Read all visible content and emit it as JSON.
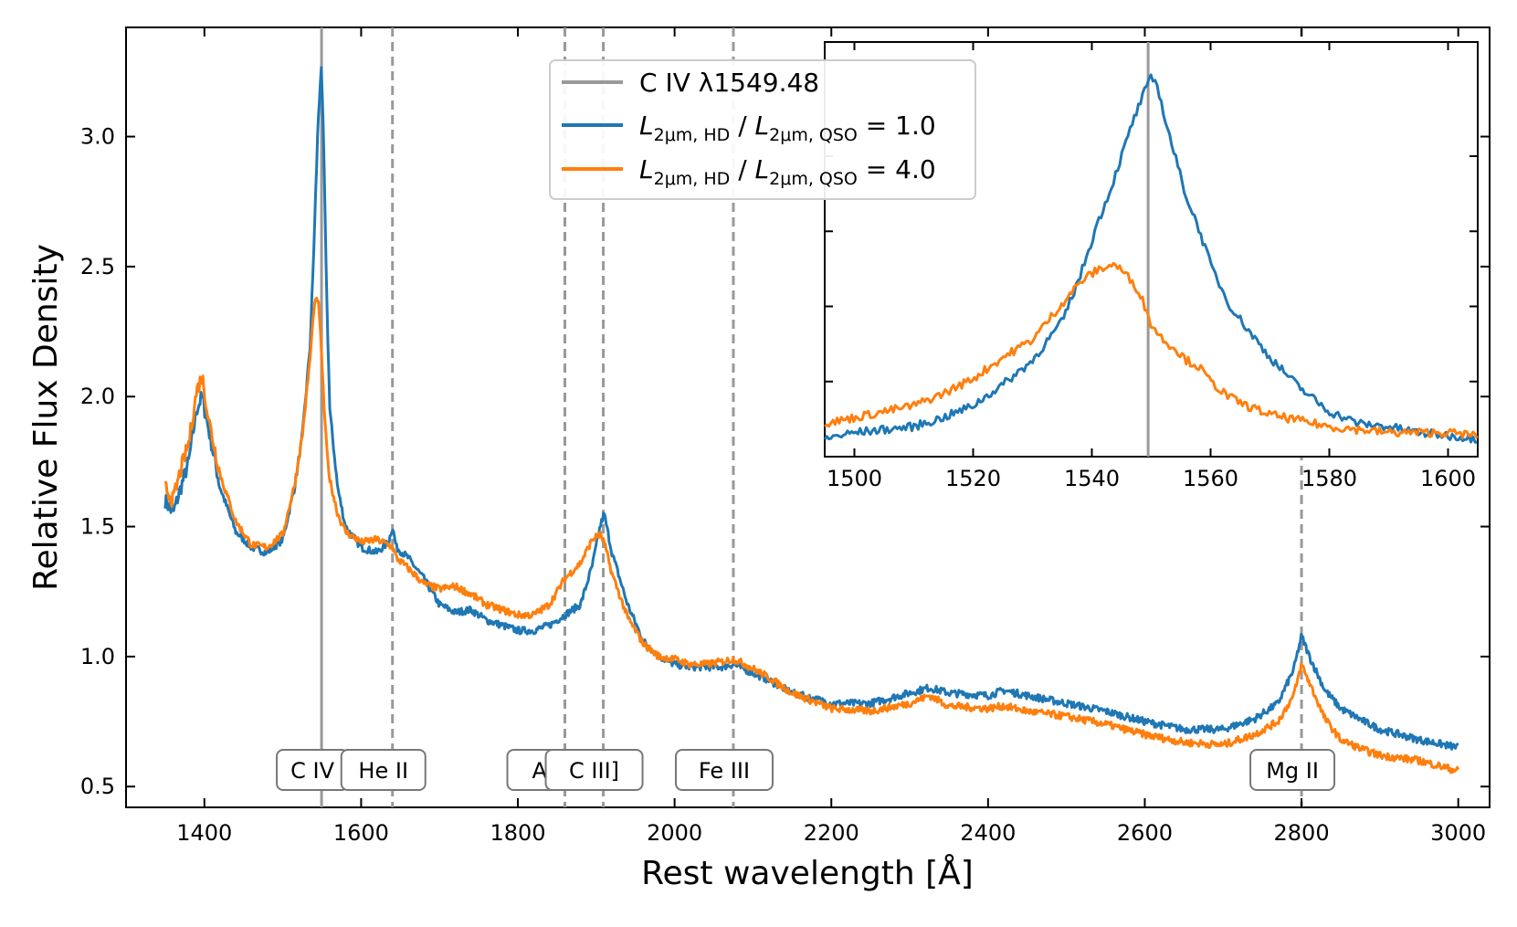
{
  "chart_data": {
    "type": "line",
    "xlabel": "Rest wavelength [Å]",
    "ylabel": "Relative Flux Density",
    "xlim": [
      1300,
      3040
    ],
    "ylim": [
      0.42,
      3.42
    ],
    "x_ticks": [
      1400,
      1600,
      1800,
      2000,
      2200,
      2400,
      2600,
      2800,
      3000
    ],
    "x_tick_labels": [
      "1400",
      "1600",
      "1800",
      "2000",
      "2200",
      "2400",
      "2600",
      "2800",
      "3000"
    ],
    "y_ticks": [
      0.5,
      1.0,
      1.5,
      2.0,
      2.5,
      3.0
    ],
    "y_tick_labels": [
      "0.5",
      "1.0",
      "1.5",
      "2.0",
      "2.5",
      "3.0"
    ],
    "colors": {
      "series1": "#1f77b4",
      "series2": "#ff7f0e",
      "civ_line": "#999999",
      "dashed": "#999999"
    },
    "civ_wavelength": 1549.48,
    "legend": {
      "civ_label": "C IV λ1549.48",
      "series1": {
        "L": "L",
        "sub1": "2μm, HD",
        "sep": " / ",
        "sub2": "2μm, QSO",
        "value": " = 1.0"
      },
      "series2": {
        "L": "L",
        "sub1": "2μm, HD",
        "sep": " / ",
        "sub2": "2μm, QSO",
        "value": " = 4.0"
      }
    },
    "emission_lines": [
      {
        "name": "C IV",
        "x": 1549.48,
        "style": "solid"
      },
      {
        "name": "He II",
        "x": 1640,
        "style": "dashed"
      },
      {
        "name": "Al III",
        "x": 1860,
        "style": "dashed"
      },
      {
        "name": "C III]",
        "x": 1909,
        "style": "dashed"
      },
      {
        "name": "Fe III",
        "x": 2075,
        "style": "dashed"
      },
      {
        "name": "Mg II",
        "x": 2800,
        "style": "dashed"
      }
    ],
    "series": [
      {
        "name": "L2μm,HD / L2μm,QSO = 1.0",
        "x": [
          1350,
          1360,
          1370,
          1380,
          1390,
          1397,
          1405,
          1420,
          1440,
          1460,
          1480,
          1500,
          1515,
          1525,
          1535,
          1540,
          1545,
          1549,
          1552,
          1556,
          1560,
          1570,
          1580,
          1600,
          1620,
          1635,
          1640,
          1645,
          1660,
          1680,
          1700,
          1720,
          1740,
          1760,
          1780,
          1800,
          1820,
          1840,
          1860,
          1880,
          1895,
          1905,
          1910,
          1920,
          1940,
          1960,
          1980,
          2000,
          2020,
          2040,
          2060,
          2075,
          2090,
          2120,
          2150,
          2200,
          2250,
          2300,
          2325,
          2350,
          2400,
          2420,
          2450,
          2500,
          2550,
          2600,
          2650,
          2700,
          2740,
          2770,
          2790,
          2800,
          2810,
          2830,
          2850,
          2880,
          2900,
          2950,
          3000
        ],
        "y": [
          1.6,
          1.55,
          1.65,
          1.75,
          1.95,
          2.0,
          1.88,
          1.65,
          1.48,
          1.42,
          1.4,
          1.45,
          1.65,
          1.85,
          2.2,
          2.6,
          3.05,
          3.27,
          3.0,
          2.4,
          1.95,
          1.65,
          1.5,
          1.42,
          1.4,
          1.44,
          1.5,
          1.42,
          1.38,
          1.3,
          1.2,
          1.17,
          1.18,
          1.14,
          1.12,
          1.1,
          1.1,
          1.12,
          1.16,
          1.2,
          1.35,
          1.5,
          1.55,
          1.4,
          1.2,
          1.06,
          1.0,
          0.97,
          0.96,
          0.96,
          0.96,
          0.97,
          0.95,
          0.91,
          0.86,
          0.82,
          0.82,
          0.86,
          0.88,
          0.86,
          0.85,
          0.87,
          0.85,
          0.82,
          0.79,
          0.75,
          0.72,
          0.72,
          0.76,
          0.82,
          0.95,
          1.08,
          1.0,
          0.87,
          0.8,
          0.75,
          0.72,
          0.68,
          0.65
        ]
      },
      {
        "name": "L2μm,HD / L2μm,QSO = 4.0",
        "x": [
          1350,
          1360,
          1370,
          1380,
          1390,
          1397,
          1405,
          1420,
          1440,
          1460,
          1480,
          1500,
          1515,
          1525,
          1535,
          1540,
          1545,
          1549,
          1552,
          1556,
          1560,
          1570,
          1580,
          1600,
          1620,
          1635,
          1640,
          1645,
          1660,
          1680,
          1700,
          1720,
          1740,
          1760,
          1780,
          1800,
          1820,
          1840,
          1860,
          1880,
          1895,
          1905,
          1910,
          1920,
          1940,
          1960,
          1980,
          2000,
          2020,
          2040,
          2060,
          2075,
          2090,
          2120,
          2150,
          2200,
          2250,
          2300,
          2325,
          2350,
          2400,
          2420,
          2450,
          2500,
          2550,
          2600,
          2650,
          2700,
          2740,
          2770,
          2790,
          2800,
          2810,
          2830,
          2850,
          2880,
          2900,
          2950,
          3000
        ],
        "y": [
          1.65,
          1.6,
          1.72,
          1.82,
          2.02,
          2.08,
          1.92,
          1.7,
          1.52,
          1.43,
          1.42,
          1.47,
          1.66,
          1.85,
          2.15,
          2.35,
          2.38,
          2.2,
          2.0,
          1.8,
          1.68,
          1.55,
          1.48,
          1.44,
          1.45,
          1.43,
          1.42,
          1.38,
          1.34,
          1.28,
          1.26,
          1.27,
          1.24,
          1.2,
          1.18,
          1.16,
          1.16,
          1.2,
          1.3,
          1.36,
          1.45,
          1.47,
          1.44,
          1.32,
          1.15,
          1.05,
          1.0,
          0.99,
          0.97,
          0.97,
          0.98,
          0.99,
          0.97,
          0.92,
          0.86,
          0.8,
          0.79,
          0.82,
          0.85,
          0.81,
          0.8,
          0.81,
          0.79,
          0.77,
          0.74,
          0.7,
          0.67,
          0.66,
          0.7,
          0.75,
          0.85,
          0.97,
          0.9,
          0.76,
          0.68,
          0.64,
          0.62,
          0.6,
          0.56
        ]
      }
    ],
    "inset": {
      "xlim": [
        1495,
        1605
      ],
      "ylim": [
        2.0,
        3.38
      ],
      "x_ticks": [
        1500,
        1520,
        1540,
        1560,
        1580,
        1600
      ],
      "x_tick_labels": [
        "1500",
        "1520",
        "1540",
        "1560",
        "1580",
        "1600"
      ],
      "y_minor_ticks": [
        2.25,
        2.5,
        2.75,
        3.0
      ],
      "series": [
        {
          "name": "L2μm,HD / L2μm,QSO = 1.0",
          "x": [
            1495,
            1500,
            1505,
            1510,
            1515,
            1520,
            1525,
            1530,
            1535,
            1538,
            1541,
            1543,
            1545,
            1547,
            1549,
            1550,
            1551,
            1552,
            1554,
            1556,
            1558,
            1560,
            1563,
            1566,
            1570,
            1575,
            1580,
            1585,
            1590,
            1595,
            1600,
            1605
          ],
          "y": [
            2.06,
            2.08,
            2.09,
            2.1,
            2.13,
            2.17,
            2.24,
            2.32,
            2.45,
            2.6,
            2.78,
            2.88,
            3.0,
            3.12,
            3.22,
            3.26,
            3.24,
            3.15,
            3.0,
            2.86,
            2.76,
            2.64,
            2.51,
            2.43,
            2.33,
            2.23,
            2.15,
            2.11,
            2.1,
            2.08,
            2.07,
            2.06
          ]
        },
        {
          "name": "L2μm,HD / L2μm,QSO = 4.0",
          "x": [
            1495,
            1500,
            1505,
            1510,
            1515,
            1520,
            1525,
            1530,
            1535,
            1538,
            1540,
            1542,
            1544,
            1546,
            1548,
            1550,
            1552,
            1554,
            1556,
            1558,
            1560,
            1563,
            1566,
            1570,
            1575,
            1580,
            1585,
            1590,
            1595,
            1600,
            1605
          ],
          "y": [
            2.11,
            2.13,
            2.15,
            2.17,
            2.21,
            2.26,
            2.33,
            2.39,
            2.51,
            2.58,
            2.61,
            2.63,
            2.64,
            2.6,
            2.55,
            2.44,
            2.39,
            2.36,
            2.32,
            2.3,
            2.25,
            2.2,
            2.17,
            2.14,
            2.12,
            2.1,
            2.09,
            2.08,
            2.08,
            2.08,
            2.07
          ]
        }
      ]
    }
  }
}
